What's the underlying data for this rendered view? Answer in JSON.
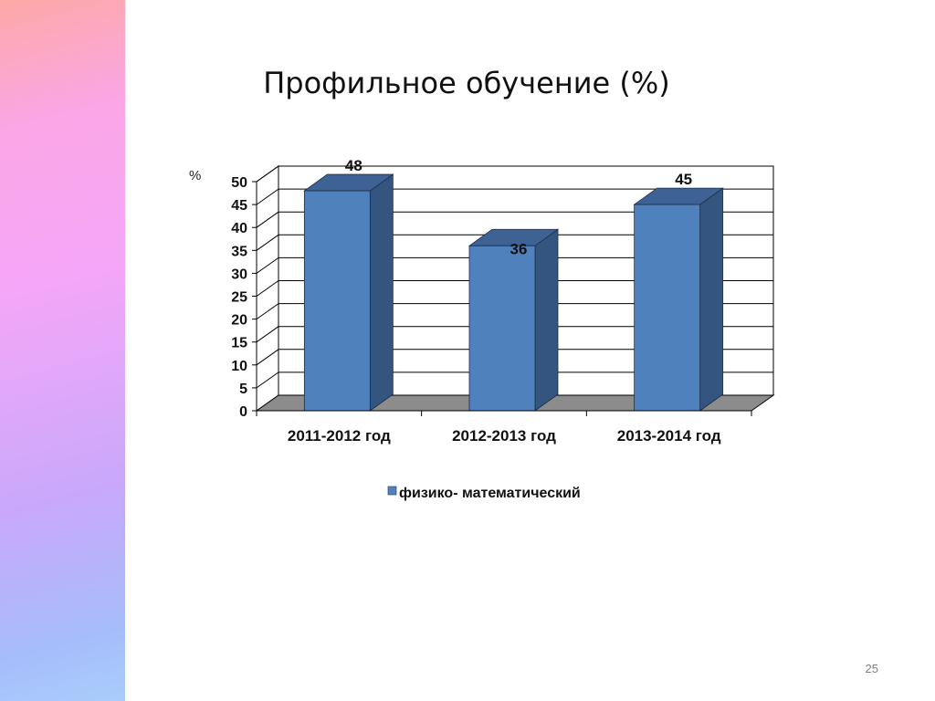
{
  "slide": {
    "title": "Профильное обучение (%)",
    "page_number": "25"
  },
  "colors": {
    "bar_front": "#4f81bd",
    "bar_side": "#34557f",
    "bar_top": "#3d6293",
    "floor": "#8c8c8c",
    "grid": "#000000"
  },
  "chart_data": {
    "type": "bar",
    "style": "3d-column",
    "title": "",
    "ylabel": "%",
    "xlabel": "",
    "categories": [
      "2011-2012 год",
      "2012-2013 год",
      "2013-2014 год"
    ],
    "series": [
      {
        "name": "физико- математический",
        "values": [
          48,
          36,
          45
        ]
      }
    ],
    "data_labels": [
      "48",
      "36",
      "45"
    ],
    "ylim": [
      0,
      50
    ],
    "yticks": [
      0,
      5,
      10,
      15,
      20,
      25,
      30,
      35,
      40,
      45,
      50
    ],
    "grid": true,
    "legend": "bottom"
  }
}
